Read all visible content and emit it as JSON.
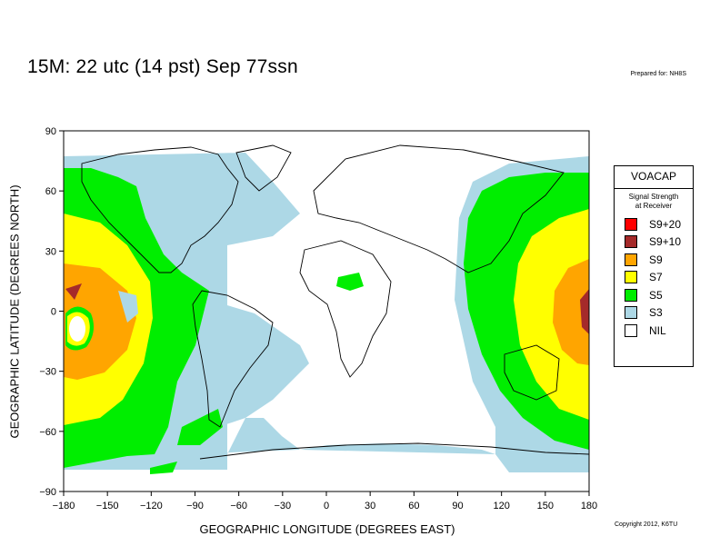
{
  "title": "15M:  22 utc (14 pst) Sep 77ssn",
  "prepared_for": "Prepared for: NH8S",
  "copyright": "Copyright 2012, K6TU",
  "axes": {
    "x_label": "GEOGRAPHIC LONGITUDE (DEGREES EAST)",
    "y_label": "GEOGRAPHIC LATITUDE (DEGREES NORTH)",
    "x_ticks": [
      "−180",
      "−150",
      "−120",
      "−90",
      "−60",
      "−30",
      "0",
      "30",
      "60",
      "90",
      "120",
      "150",
      "180"
    ],
    "y_ticks": [
      "90",
      "60",
      "30",
      "0",
      "−30",
      "−60",
      "−90"
    ],
    "x_range": [
      -180,
      180
    ],
    "y_range": [
      -90,
      90
    ]
  },
  "legend": {
    "title": "VOACAP",
    "subtitle_line1": "Signal Strength",
    "subtitle_line2": "at Receiver",
    "items": [
      {
        "label": "S9+20",
        "color": "#ff0000"
      },
      {
        "label": "S9+10",
        "color": "#a52a2a"
      },
      {
        "label": "S9",
        "color": "#ffa500"
      },
      {
        "label": "S7",
        "color": "#ffff00"
      },
      {
        "label": "S5",
        "color": "#00ee00"
      },
      {
        "label": "S3",
        "color": "#add8e6"
      },
      {
        "label": "NIL",
        "color": "#ffffff"
      }
    ]
  }
}
